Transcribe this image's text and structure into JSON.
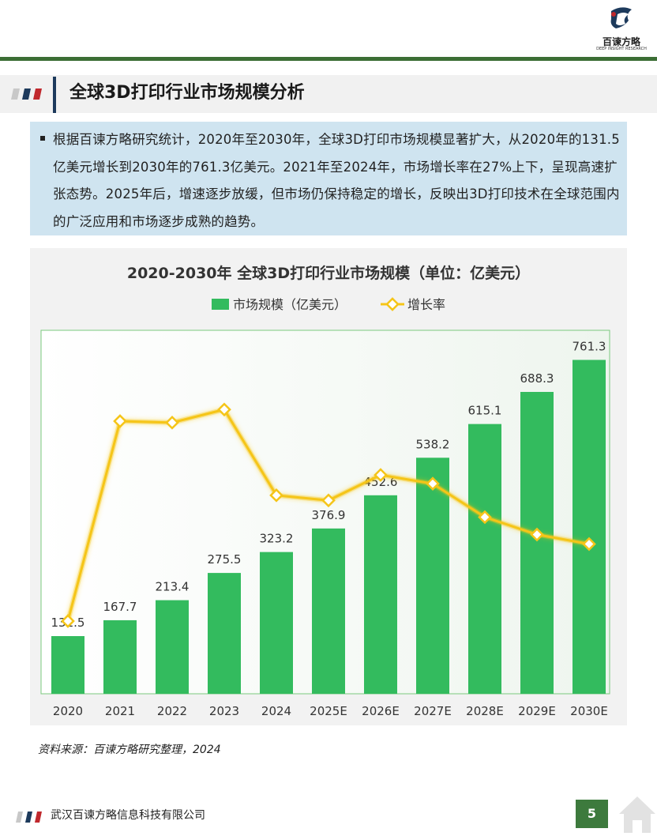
{
  "header": {
    "logo_text": "百谏方略",
    "logo_sub": "DEEP INSIGHT RESEARCH"
  },
  "section": {
    "title": "全球3D打印行业市场规模分析"
  },
  "summary": {
    "text": "根据百谏方略研究统计，2020年至2030年，全球3D打印市场规模显著扩大，从2020年的131.5亿美元增长到2030年的761.3亿美元。2021年至2024年，市场增长率在27%上下，呈现高速扩张态势。2025年后，增速逐步放缓，但市场仍保持稳定的增长，反映出3D打印技术在全球范围内的广泛应用和市场逐步成熟的趋势。"
  },
  "chart_data": {
    "type": "bar+line",
    "title": "2020-2030年 全球3D打印行业市场规模（单位：亿美元）",
    "categories": [
      "2020",
      "2021",
      "2022",
      "2023",
      "2024",
      "2025E",
      "2026E",
      "2027E",
      "2028E",
      "2029E",
      "2030E"
    ],
    "series": [
      {
        "name": "市场规模（亿美元）",
        "type": "bar",
        "color": "#33bb5e",
        "values": [
          131.5,
          167.7,
          213.4,
          275.5,
          323.2,
          376.9,
          452.6,
          538.2,
          615.1,
          688.3,
          761.3
        ],
        "labels": [
          "131.5",
          "167.7",
          "213.4",
          "275.5",
          "323.2",
          "376.9",
          "452.6",
          "538.2",
          "615.1",
          "688.3",
          "761.3"
        ]
      },
      {
        "name": "增长率",
        "type": "line",
        "color": "#f5c518",
        "values": [
          null,
          27.5,
          27.3,
          29.1,
          17.3,
          16.6,
          20.1,
          18.9,
          14.3,
          11.9,
          10.6
        ]
      }
    ],
    "ylim": [
      0,
      800
    ],
    "y2lim": [
      -10,
      40
    ],
    "legend": "top-center",
    "grid": false
  },
  "source": "资料来源：百谏方略研究整理，2024",
  "footer": {
    "company": "武汉百谏方略信息科技有限公司",
    "page": "5"
  },
  "colors": {
    "brand_green": "#3c6e35",
    "navy": "#1d3a5c",
    "red": "#c0282d",
    "summary_bg": "#cfe4f0",
    "bar": "#33bb5e",
    "line": "#f5c518"
  }
}
